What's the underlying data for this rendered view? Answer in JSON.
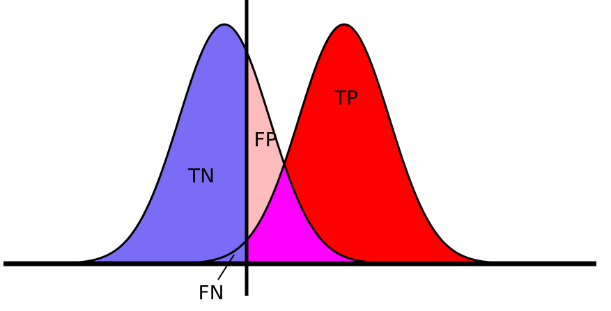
{
  "labels": {
    "tn": "TN",
    "fp": "FP",
    "tp": "TP",
    "fn": "FN"
  },
  "colors": {
    "tn_region": "#7b6cf5",
    "fn_region": "#c8c2f7",
    "fp_region": "#ffbcbc",
    "tp_region": "#ff0000",
    "overlap_region": "#ff00ff",
    "outline": "#000000",
    "background": "#ffffff"
  },
  "distributions": {
    "negative_mean": 322,
    "positive_mean": 494,
    "sigma": 65,
    "threshold": 354
  }
}
